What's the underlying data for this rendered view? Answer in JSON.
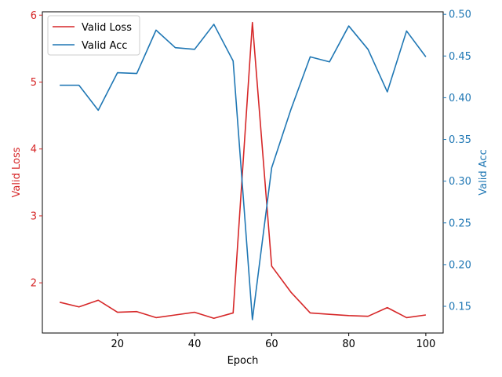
{
  "chart_data": {
    "type": "line",
    "xlabel": "Epoch",
    "xlim": [
      0.5,
      104.5
    ],
    "x_ticks": [
      20,
      40,
      60,
      80,
      100
    ],
    "x": [
      5,
      10,
      15,
      20,
      25,
      30,
      35,
      40,
      45,
      50,
      55,
      60,
      65,
      70,
      75,
      80,
      85,
      90,
      95,
      100
    ],
    "left_axis": {
      "label": "Valid Loss",
      "color": "#d62728",
      "ylim": [
        1.25,
        6.05
      ],
      "ticks": [
        2,
        3,
        4,
        5,
        6
      ]
    },
    "right_axis": {
      "label": "Valid Acc",
      "color": "#1f77b4",
      "ylim": [
        0.118,
        0.503
      ],
      "ticks": [
        0.15,
        0.2,
        0.25,
        0.3,
        0.35,
        0.4,
        0.45,
        0.5
      ],
      "tick_labels": [
        "0.15",
        "0.20",
        "0.25",
        "0.30",
        "0.35",
        "0.40",
        "0.45",
        "0.50"
      ]
    },
    "series": [
      {
        "name": "Valid Loss",
        "axis": "left",
        "color": "#d62728",
        "values": [
          1.71,
          1.64,
          1.74,
          1.56,
          1.57,
          1.48,
          1.52,
          1.56,
          1.47,
          1.55,
          5.89,
          2.25,
          1.86,
          1.55,
          1.53,
          1.51,
          1.5,
          1.63,
          1.48,
          1.52
        ]
      },
      {
        "name": "Valid Acc",
        "axis": "right",
        "color": "#1f77b4",
        "values": [
          0.415,
          0.415,
          0.385,
          0.43,
          0.429,
          0.481,
          0.46,
          0.458,
          0.488,
          0.444,
          0.134,
          0.316,
          0.386,
          0.449,
          0.443,
          0.486,
          0.458,
          0.407,
          0.48,
          0.449
        ]
      }
    ],
    "legend": {
      "position": "top-left",
      "entries": [
        "Valid Loss",
        "Valid Acc"
      ]
    },
    "grid": false
  }
}
